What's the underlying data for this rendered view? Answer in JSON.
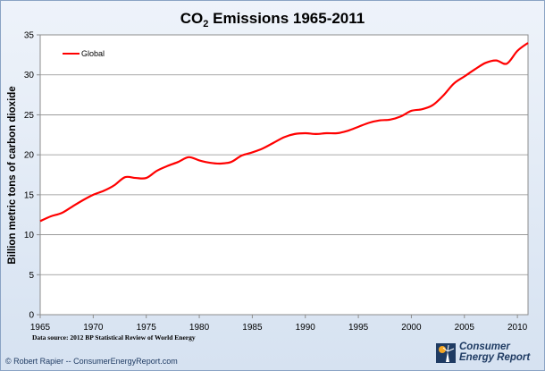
{
  "chart_data": {
    "type": "line",
    "title_main": "CO",
    "title_sub": "2",
    "title_rest": " Emissions 1965-2011",
    "ylabel": "Billion metric tons of carbon dioxide",
    "xlabel": "",
    "ylim": [
      0,
      35
    ],
    "xlim": [
      1965,
      2011
    ],
    "y_ticks": [
      0,
      5,
      10,
      15,
      20,
      25,
      30,
      35
    ],
    "x_ticks": [
      1965,
      1970,
      1975,
      1980,
      1985,
      1990,
      1995,
      2000,
      2005,
      2010
    ],
    "grid": "horizontal",
    "legend_position": "top-left",
    "series": [
      {
        "name": "Global",
        "color": "#ff0000",
        "x": [
          1965,
          1966,
          1967,
          1968,
          1969,
          1970,
          1971,
          1972,
          1973,
          1974,
          1975,
          1976,
          1977,
          1978,
          1979,
          1980,
          1981,
          1982,
          1983,
          1984,
          1985,
          1986,
          1987,
          1988,
          1989,
          1990,
          1991,
          1992,
          1993,
          1994,
          1995,
          1996,
          1997,
          1998,
          1999,
          2000,
          2001,
          2002,
          2003,
          2004,
          2005,
          2006,
          2007,
          2008,
          2009,
          2010,
          2011
        ],
        "values": [
          11.7,
          12.3,
          12.7,
          13.5,
          14.3,
          15.0,
          15.5,
          16.2,
          17.2,
          17.1,
          17.1,
          18.0,
          18.6,
          19.1,
          19.7,
          19.3,
          19.0,
          18.9,
          19.1,
          19.9,
          20.3,
          20.8,
          21.5,
          22.2,
          22.6,
          22.7,
          22.6,
          22.7,
          22.7,
          23.0,
          23.5,
          24.0,
          24.3,
          24.4,
          24.8,
          25.5,
          25.7,
          26.2,
          27.4,
          28.9,
          29.8,
          30.7,
          31.5,
          31.8,
          31.4,
          33.0,
          34.0
        ]
      }
    ]
  },
  "footer": {
    "source": "Data source: 2012 BP Statistical Review of World Energy",
    "credit": "© Robert Rapier -- ConsumerEnergyReport.com",
    "logo_line1": "Consumer",
    "logo_line2": "Energy Report"
  }
}
